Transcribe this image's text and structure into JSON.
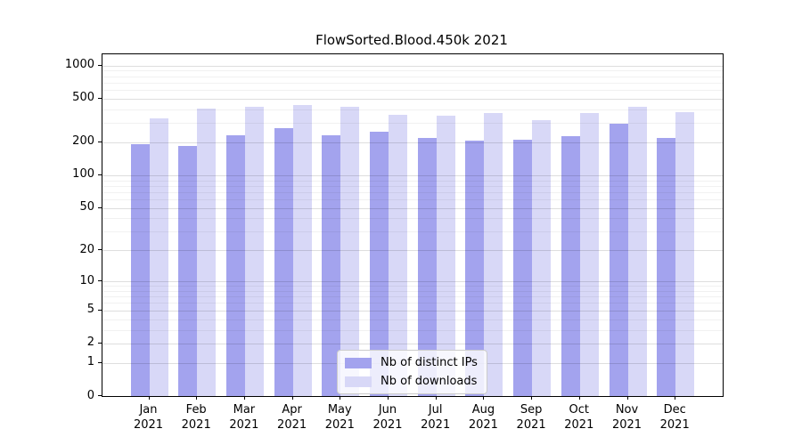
{
  "chart_data": {
    "type": "bar",
    "title": "FlowSorted.Blood.450k 2021",
    "categories": [
      "Jan",
      "Feb",
      "Mar",
      "Apr",
      "May",
      "Jun",
      "Jul",
      "Aug",
      "Sep",
      "Oct",
      "Nov",
      "Dec"
    ],
    "x_tick_year": "2021",
    "series": [
      {
        "name": "Nb of distinct IPs",
        "key": "distinct-ips",
        "color": "#a3a3ee",
        "values": [
          193,
          186,
          231,
          268,
          230,
          249,
          218,
          206,
          211,
          227,
          295,
          220
        ]
      },
      {
        "name": "Nb of downloads",
        "key": "downloads",
        "color": "#d8d8f7",
        "values": [
          334,
          407,
          422,
          440,
          419,
          357,
          352,
          371,
          317,
          370,
          421,
          377
        ]
      }
    ],
    "xlabel": "",
    "ylabel": "",
    "yscale": "log1p",
    "ylim": [
      0,
      1265
    ],
    "y_major_ticks": [
      0,
      1,
      2,
      5,
      10,
      20,
      50,
      100,
      200,
      500,
      1000
    ],
    "y_minor_ticks": [
      3,
      4,
      6,
      7,
      8,
      9,
      30,
      40,
      60,
      70,
      80,
      90,
      300,
      400,
      600,
      700,
      800,
      900
    ],
    "grid": true,
    "grid_over_bars": true,
    "legend_position": "lower center",
    "background": "#ffffff",
    "text_color": "#000000"
  }
}
